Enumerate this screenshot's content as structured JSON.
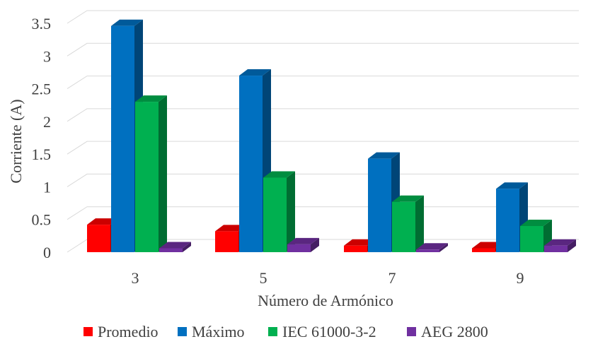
{
  "chart_data": {
    "type": "bar",
    "style": "3d-clustered-column",
    "categories": [
      "3",
      "5",
      "7",
      "9"
    ],
    "series": [
      {
        "name": "Promedio",
        "values": [
          0.42,
          0.32,
          0.1,
          0.06
        ],
        "color": "#ff0000"
      },
      {
        "name": "Máximo",
        "values": [
          3.46,
          2.7,
          1.43,
          0.97
        ],
        "color": "#0070c0"
      },
      {
        "name": "IEC 61000-3-2",
        "values": [
          2.3,
          1.14,
          0.77,
          0.4
        ],
        "color": "#00b050"
      },
      {
        "name": "AEG 2800",
        "values": [
          0.06,
          0.12,
          0.04,
          0.1
        ],
        "color": "#7030a0"
      }
    ],
    "xlabel": "Número de Armónico",
    "ylabel": "Corriente (A)",
    "ylim": [
      0,
      3.5
    ],
    "yticks": [
      "0",
      "0.5",
      "1",
      "1.5",
      "2",
      "2.5",
      "3",
      "3.5"
    ],
    "grid": true,
    "legend": "bottom"
  }
}
